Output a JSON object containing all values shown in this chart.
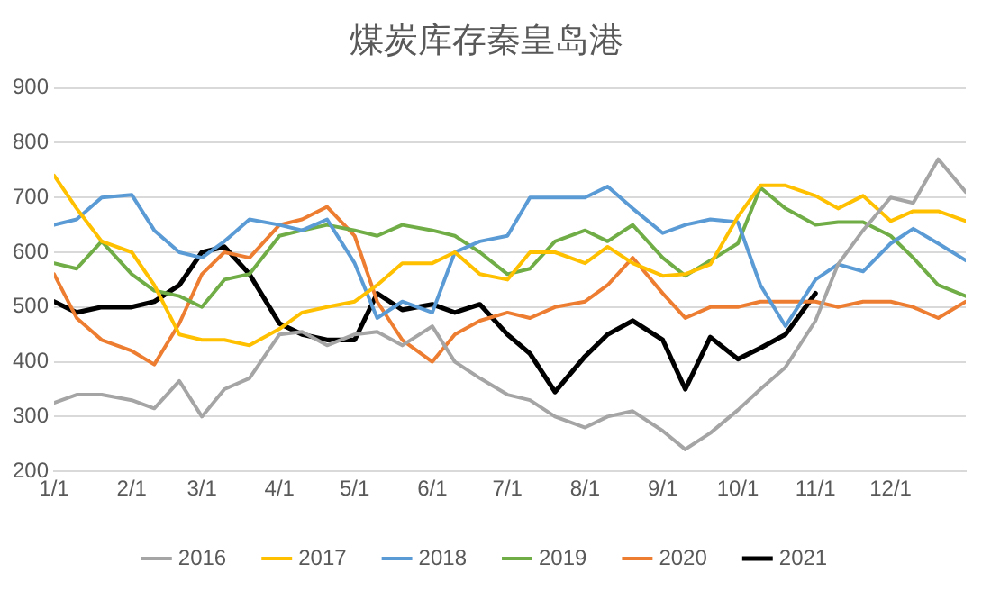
{
  "chart_data": {
    "type": "line",
    "title": "煤炭库存秦皇岛港",
    "x": [
      "--01-01",
      "--01-10",
      "--01-20",
      "--02-01",
      "--02-10",
      "--02-20",
      "--03-01",
      "--03-10",
      "--03-20",
      "--04-01",
      "--04-10",
      "--04-20",
      "--05-01",
      "--05-10",
      "--05-20",
      "--06-01",
      "--06-10",
      "--06-20",
      "--07-01",
      "--07-10",
      "--07-20",
      "--08-01",
      "--08-10",
      "--08-20",
      "--09-01",
      "--09-10",
      "--09-20",
      "--10-01",
      "--10-10",
      "--10-20",
      "--11-01",
      "--11-10",
      "--11-20",
      "--12-01",
      "--12-10",
      "--12-20",
      "--12-31"
    ],
    "series": [
      {
        "name": "2016",
        "color": "#a5a5a5",
        "values": [
          325,
          340,
          340,
          330,
          315,
          365,
          300,
          350,
          370,
          450,
          455,
          430,
          450,
          455,
          430,
          465,
          400,
          370,
          340,
          330,
          300,
          280,
          300,
          310,
          274,
          240,
          270,
          312,
          350,
          390,
          475,
          578,
          640,
          700,
          690,
          770,
          710
        ]
      },
      {
        "name": "2017",
        "color": "#ffc000",
        "values": [
          740,
          680,
          620,
          600,
          540,
          450,
          440,
          440,
          430,
          460,
          490,
          500,
          510,
          540,
          580,
          580,
          600,
          560,
          550,
          600,
          600,
          580,
          610,
          580,
          557,
          560,
          578,
          665,
          722,
          722,
          703,
          680,
          703,
          657,
          675,
          675,
          657
        ]
      },
      {
        "name": "2018",
        "color": "#5b9bd5",
        "values": [
          650,
          660,
          700,
          705,
          640,
          600,
          590,
          620,
          660,
          650,
          640,
          660,
          580,
          480,
          510,
          490,
          600,
          620,
          630,
          700,
          700,
          700,
          720,
          680,
          635,
          650,
          660,
          655,
          540,
          465,
          550,
          578,
          565,
          616,
          643,
          616,
          585
        ]
      },
      {
        "name": "2019",
        "color": "#70ad47",
        "values": [
          580,
          570,
          620,
          560,
          530,
          520,
          500,
          550,
          560,
          630,
          640,
          650,
          640,
          630,
          650,
          640,
          630,
          600,
          560,
          570,
          620,
          640,
          620,
          650,
          590,
          557,
          585,
          616,
          718,
          680,
          650,
          655,
          655,
          630,
          590,
          540,
          520
        ]
      },
      {
        "name": "2020",
        "color": "#ed7d31",
        "values": [
          560,
          480,
          440,
          420,
          395,
          470,
          560,
          600,
          590,
          650,
          660,
          683,
          630,
          510,
          440,
          400,
          450,
          475,
          490,
          480,
          500,
          510,
          540,
          590,
          525,
          480,
          500,
          500,
          510,
          510,
          510,
          500,
          510,
          510,
          500,
          480,
          510
        ]
      },
      {
        "name": "2021",
        "color": "#000000",
        "values": [
          510,
          490,
          500,
          500,
          510,
          540,
          600,
          610,
          560,
          470,
          450,
          440,
          440,
          525,
          495,
          505,
          490,
          505,
          450,
          415,
          345,
          410,
          450,
          475,
          440,
          350,
          445,
          405,
          425,
          450,
          525,
          null,
          null,
          null,
          null,
          null,
          null
        ]
      }
    ],
    "ylim": [
      200,
      900
    ],
    "yticks": [
      200,
      300,
      400,
      500,
      600,
      700,
      800,
      900
    ],
    "xlim": [
      "--01-01",
      "--12-31"
    ],
    "xticks": [
      {
        "value": "--01-01",
        "label": "1/1"
      },
      {
        "value": "--02-01",
        "label": "2/1"
      },
      {
        "value": "--03-01",
        "label": "3/1"
      },
      {
        "value": "--04-01",
        "label": "4/1"
      },
      {
        "value": "--05-01",
        "label": "5/1"
      },
      {
        "value": "--06-01",
        "label": "6/1"
      },
      {
        "value": "--07-01",
        "label": "7/1"
      },
      {
        "value": "--08-01",
        "label": "8/1"
      },
      {
        "value": "--09-01",
        "label": "9/1"
      },
      {
        "value": "--10-01",
        "label": "10/1"
      },
      {
        "value": "--11-01",
        "label": "11/1"
      },
      {
        "value": "--12-01",
        "label": "12/1"
      }
    ],
    "grid": "y",
    "legend": "bottom",
    "marker": "none",
    "line_style": "solid"
  }
}
